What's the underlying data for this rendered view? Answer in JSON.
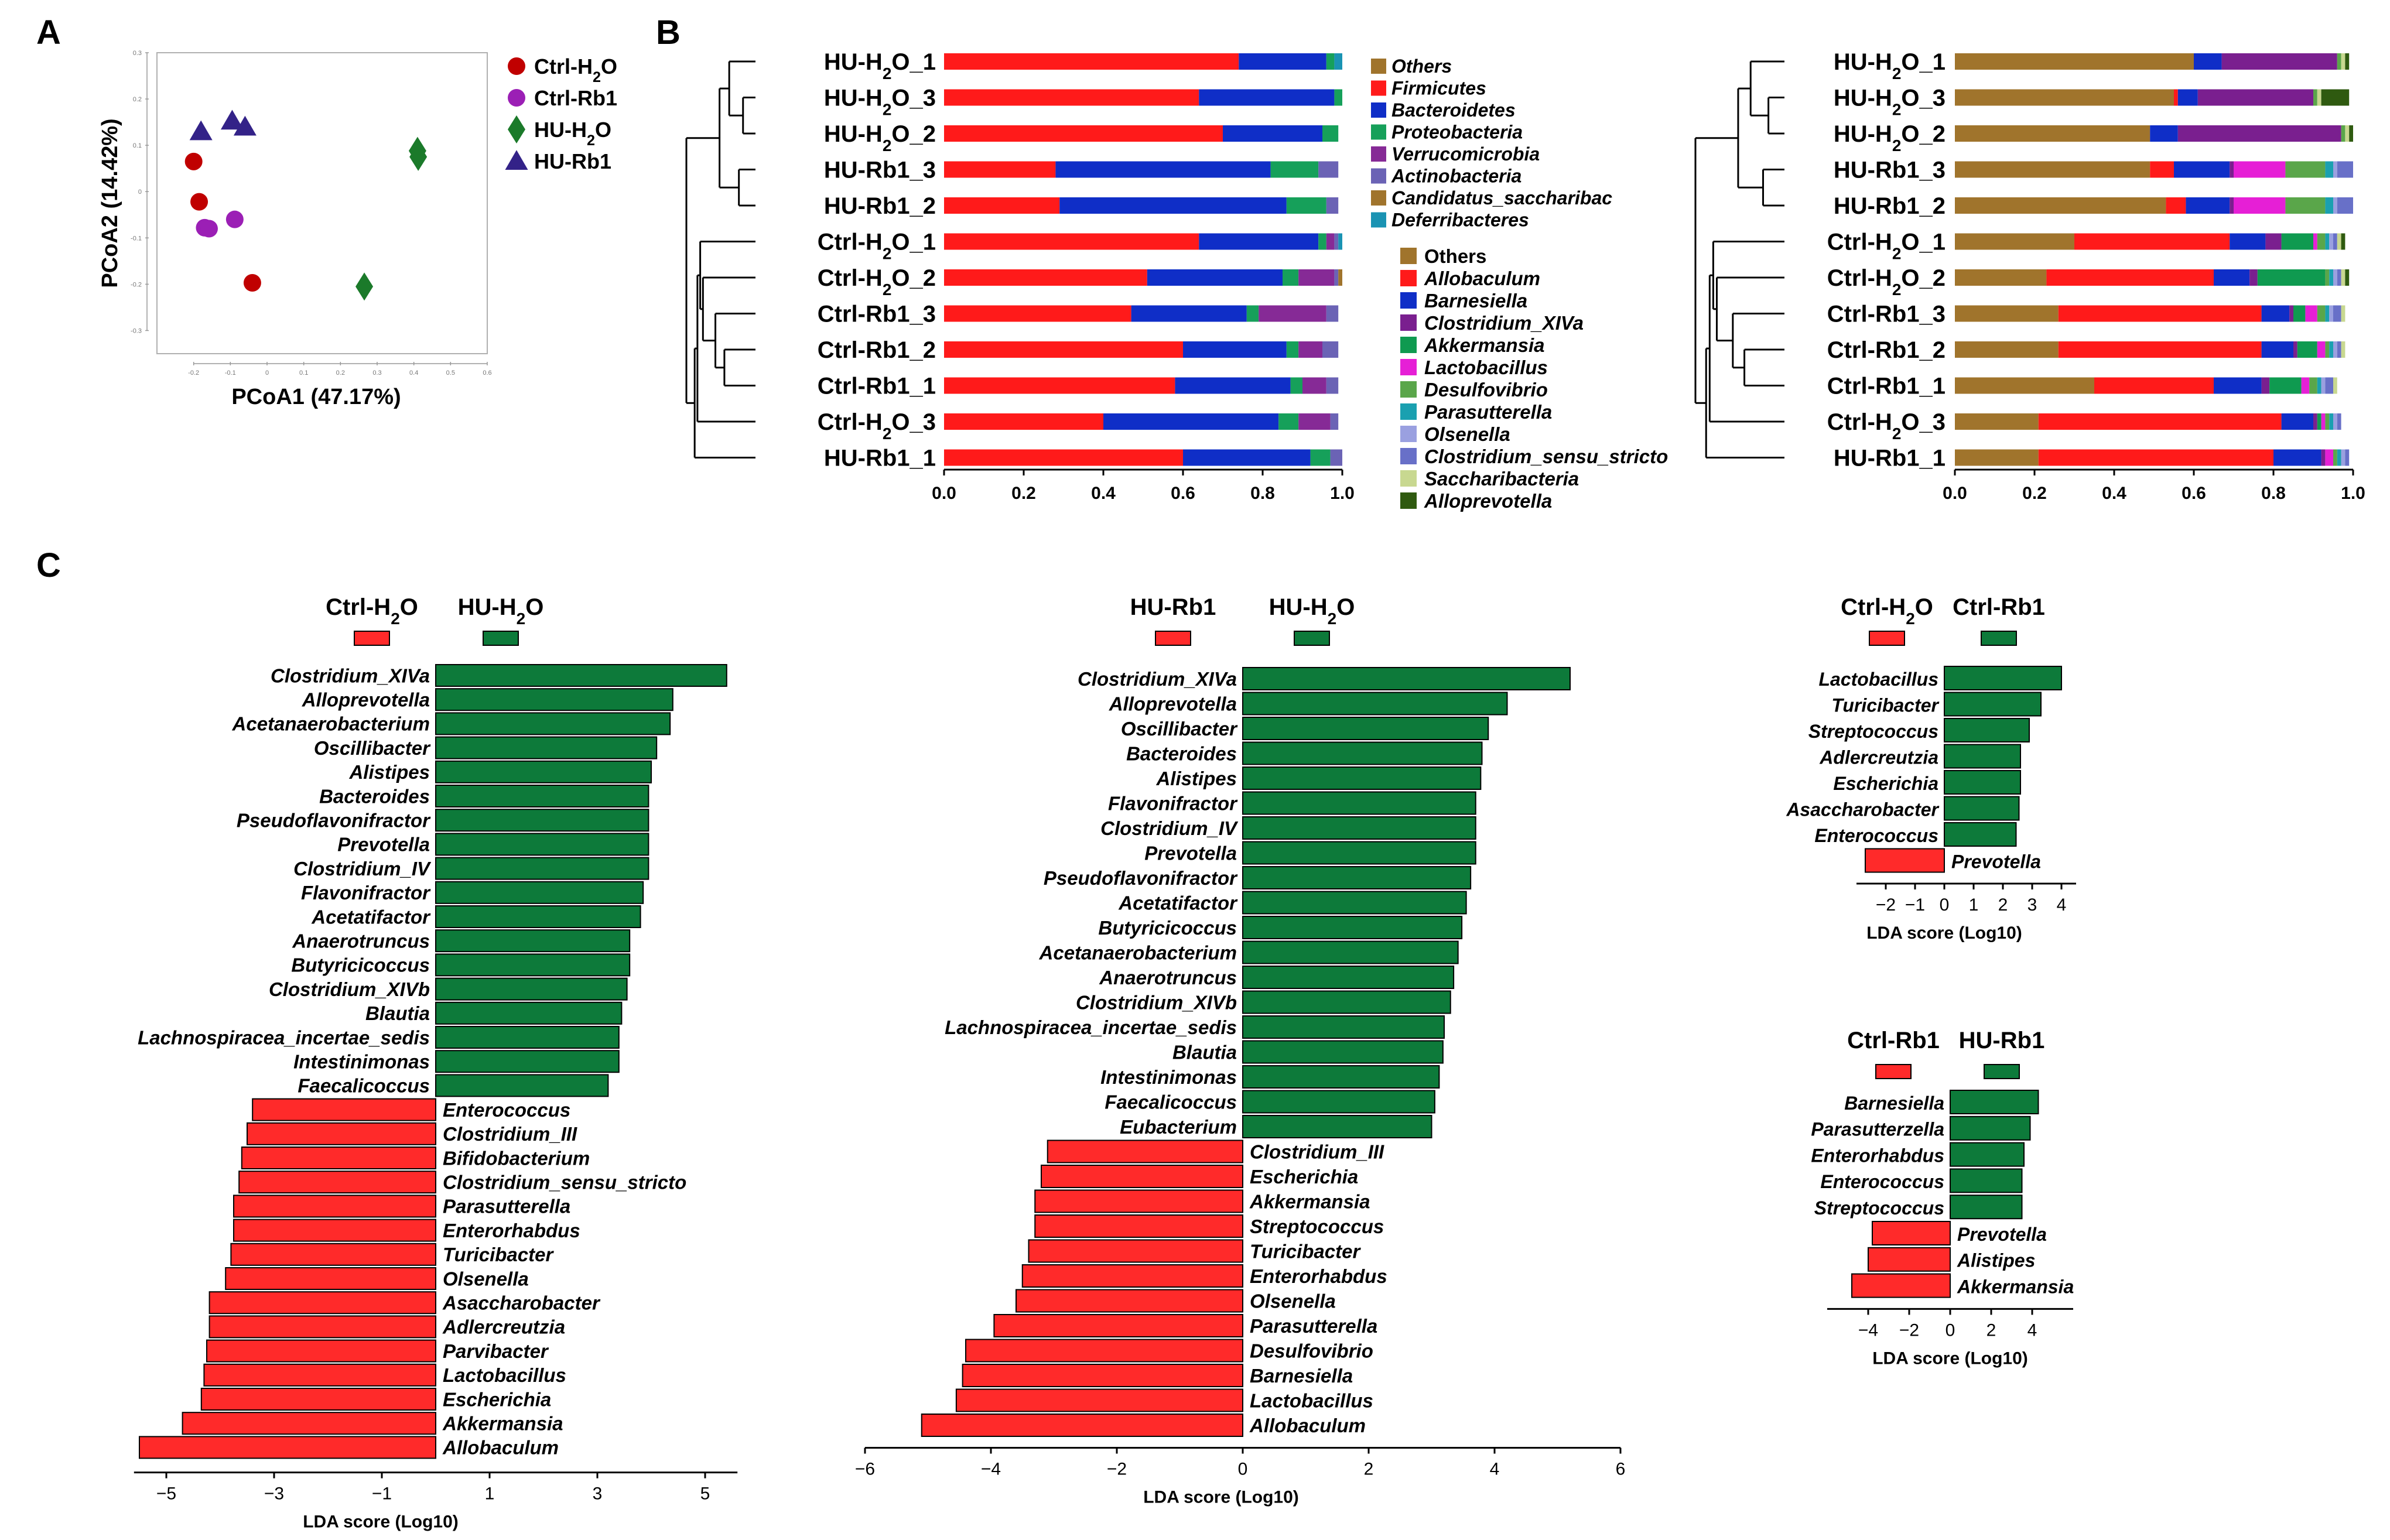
{
  "panel_labels": {
    "a": "A",
    "b": "B",
    "c": "C"
  },
  "colors": {
    "ctrl_h2o": "#c00000",
    "ctrl_rb1": "#9b1fb5",
    "hu_h2o": "#1b7a2a",
    "hu_rb1": "#332288",
    "lda_red": "#ff2a2a",
    "lda_green": "#0d7a3a",
    "phylum": [
      "#a0742c",
      "#ff1a1a",
      "#0f2ec7",
      "#16a05a",
      "#862a96",
      "#6b63b5",
      "#a0742c",
      "#1a93b3"
    ],
    "genus": [
      "#a0742c",
      "#ff1a1a",
      "#0f2ec7",
      "#7a1f8f",
      "#0f9a50",
      "#e61fd6",
      "#5aa64a",
      "#1aa0b0",
      "#9aa0e0",
      "#6870c8",
      "#c8d890",
      "#2f5a10"
    ]
  },
  "chart_data": [
    {
      "id": "pcoa",
      "type": "scatter",
      "xlabel": "PCoA1 (47.17%)",
      "ylabel": "PCoA2 (14.42%)",
      "xlim": [
        -0.3,
        0.6
      ],
      "ylim": [
        -0.35,
        0.3
      ],
      "xticks": [
        "-0.2",
        "-0.1",
        "0",
        "0.1",
        "0.2",
        "0.3",
        "0.4",
        "0.5",
        "0.6"
      ],
      "yticks": [
        "0.3",
        "0.2",
        "0.1",
        "0",
        "-0.1",
        "-0.2",
        "-0.3"
      ],
      "series": [
        {
          "name": "Ctrl-H2O",
          "label": "Ctrl-H",
          "sub": "2",
          "tail": "O",
          "marker": "circle",
          "color": "#c00000",
          "x": [
            -0.2,
            -0.185,
            -0.04
          ],
          "y": [
            0.065,
            -0.022,
            -0.197
          ]
        },
        {
          "name": "Ctrl-Rb1",
          "label": "Ctrl-Rb1",
          "sub": "",
          "tail": "",
          "marker": "circle",
          "color": "#9b1fb5",
          "x": [
            -0.17,
            -0.158,
            -0.088
          ],
          "y": [
            -0.078,
            -0.08,
            -0.06
          ]
        },
        {
          "name": "HU-H2O",
          "label": "HU-H",
          "sub": "2",
          "tail": "O",
          "marker": "diamond",
          "color": "#1b7a2a",
          "x": [
            0.41,
            0.412,
            0.265
          ],
          "y": [
            0.088,
            0.075,
            -0.205
          ]
        },
        {
          "name": "HU-Rb1",
          "label": "HU-Rb1",
          "sub": "",
          "tail": "",
          "marker": "triangle",
          "color": "#332288",
          "x": [
            -0.18,
            -0.095,
            -0.06
          ],
          "y": [
            0.13,
            0.153,
            0.14
          ]
        }
      ]
    },
    {
      "id": "phylum_bars",
      "type": "bar",
      "orientation": "horizontal",
      "stacked": true,
      "xlim": [
        0,
        1
      ],
      "xticks": [
        "0.0",
        "0.2",
        "0.4",
        "0.6",
        "0.8",
        "1.0"
      ],
      "samples": [
        {
          "p": "HU-H",
          "s": "2",
          "q": "O_1"
        },
        {
          "p": "HU-H",
          "s": "2",
          "q": "O_3"
        },
        {
          "p": "HU-H",
          "s": "2",
          "q": "O_2"
        },
        {
          "p": "HU-Rb1_3",
          "s": "",
          "q": ""
        },
        {
          "p": "HU-Rb1_2",
          "s": "",
          "q": ""
        },
        {
          "p": "Ctrl-H",
          "s": "2",
          "q": "O_1"
        },
        {
          "p": "Ctrl-H",
          "s": "2",
          "q": "O_2"
        },
        {
          "p": "Ctrl-Rb1_3",
          "s": "",
          "q": ""
        },
        {
          "p": "Ctrl-Rb1_2",
          "s": "",
          "q": ""
        },
        {
          "p": "Ctrl-Rb1_1",
          "s": "",
          "q": ""
        },
        {
          "p": "Ctrl-H",
          "s": "2",
          "q": "O_3"
        },
        {
          "p": "HU-Rb1_1",
          "s": "",
          "q": ""
        }
      ],
      "series": [
        {
          "name": "Others",
          "values": [
            0,
            0,
            0,
            0,
            0,
            0,
            0,
            0,
            0,
            0,
            0,
            0
          ]
        },
        {
          "name": "Firmicutes",
          "values": [
            0.74,
            0.64,
            0.7,
            0.28,
            0.29,
            0.64,
            0.51,
            0.47,
            0.6,
            0.58,
            0.4,
            0.6
          ]
        },
        {
          "name": "Bacteroidetes",
          "values": [
            0.22,
            0.34,
            0.25,
            0.54,
            0.57,
            0.3,
            0.34,
            0.29,
            0.26,
            0.29,
            0.44,
            0.32
          ]
        },
        {
          "name": "Proteobacteria",
          "values": [
            0.02,
            0.02,
            0.04,
            0.12,
            0.1,
            0.02,
            0.04,
            0.03,
            0.03,
            0.03,
            0.05,
            0.05
          ]
        },
        {
          "name": "Verrucomicrobia",
          "values": [
            0,
            0,
            0,
            0,
            0,
            0.02,
            0.09,
            0.17,
            0.06,
            0.06,
            0.08,
            0
          ]
        },
        {
          "name": "Actinobacteria",
          "values": [
            0,
            0,
            0,
            0.05,
            0.03,
            0.01,
            0.01,
            0.03,
            0.04,
            0.03,
            0.02,
            0.03
          ]
        },
        {
          "name": "Candidatus_saccharibac",
          "values": [
            0,
            0,
            0,
            0,
            0,
            0,
            0.01,
            0,
            0,
            0,
            0,
            0
          ]
        },
        {
          "name": "Deferribacteres",
          "values": [
            0.02,
            0,
            0,
            0,
            0,
            0.01,
            0,
            0,
            0,
            0,
            0,
            0
          ]
        }
      ],
      "legend": [
        "Others",
        "Firmicutes",
        "Bacteroidetes",
        "Proteobacteria",
        "Verrucomicrobia",
        "Actinobacteria",
        "Candidatus_saccharibac",
        "Deferribacteres"
      ]
    },
    {
      "id": "genus_bars",
      "type": "bar",
      "orientation": "horizontal",
      "stacked": true,
      "xlim": [
        0,
        1
      ],
      "xticks": [
        "0.0",
        "0.2",
        "0.4",
        "0.6",
        "0.8",
        "1.0"
      ],
      "series": [
        {
          "name": "Others",
          "values": [
            0.6,
            0.55,
            0.49,
            0.49,
            0.53,
            0.3,
            0.23,
            0.26,
            0.26,
            0.35,
            0.21,
            0.21
          ]
        },
        {
          "name": "Allobaculum",
          "values": [
            0,
            0.01,
            0,
            0.06,
            0.05,
            0.39,
            0.42,
            0.51,
            0.51,
            0.3,
            0.61,
            0.59
          ]
        },
        {
          "name": "Barnesiella",
          "values": [
            0.07,
            0.05,
            0.07,
            0.14,
            0.11,
            0.09,
            0.09,
            0.07,
            0.08,
            0.12,
            0.08,
            0.12
          ]
        },
        {
          "name": "Clostridium_XIVa",
          "values": [
            0.29,
            0.29,
            0.41,
            0.01,
            0.01,
            0.04,
            0.02,
            0.01,
            0.01,
            0.02,
            0.01,
            0.01
          ]
        },
        {
          "name": "Akkermansia",
          "values": [
            0,
            0,
            0,
            0,
            0,
            0.08,
            0.17,
            0.03,
            0.05,
            0.08,
            0.01,
            0
          ]
        },
        {
          "name": "Lactobacillus",
          "values": [
            0,
            0,
            0,
            0.13,
            0.13,
            0.01,
            0,
            0.03,
            0.02,
            0.02,
            0.01,
            0.02
          ]
        },
        {
          "name": "Desulfovibrio",
          "values": [
            0.01,
            0.01,
            0.01,
            0.1,
            0.1,
            0.02,
            0.01,
            0.02,
            0.01,
            0.02,
            0.01,
            0.01
          ]
        },
        {
          "name": "Parasutterella",
          "values": [
            0,
            0,
            0,
            0.02,
            0.02,
            0.01,
            0.01,
            0.01,
            0.01,
            0.01,
            0.01,
            0.01
          ]
        },
        {
          "name": "Olsenella",
          "values": [
            0,
            0,
            0,
            0.01,
            0.01,
            0.01,
            0.01,
            0.01,
            0.01,
            0.01,
            0.01,
            0.01
          ]
        },
        {
          "name": "Clostridium_sensu_stricto",
          "values": [
            0,
            0,
            0,
            0.04,
            0.04,
            0.01,
            0.01,
            0.02,
            0.01,
            0.02,
            0.01,
            0.01
          ]
        },
        {
          "name": "Saccharibacteria",
          "values": [
            0.01,
            0.01,
            0.01,
            0,
            0,
            0.01,
            0.01,
            0.01,
            0.01,
            0.01,
            0,
            0
          ]
        },
        {
          "name": "Alloprevotella",
          "values": [
            0.01,
            0.07,
            0.01,
            0,
            0,
            0.01,
            0.01,
            0,
            0,
            0,
            0,
            0
          ]
        }
      ],
      "legend": [
        "Others",
        "Allobaculum",
        "Barnesiella",
        "Clostridium_XIVa",
        "Akkermansia",
        "Lactobacillus",
        "Desulfovibrio",
        "Parasutterella",
        "Olsenella",
        "Clostridium_sensu_stricto",
        "Saccharibacteria",
        "Alloprevotella"
      ]
    },
    {
      "id": "lda1",
      "type": "bar",
      "orientation": "horizontal",
      "header": {
        "left": {
          "p": "Ctrl-H",
          "s": "2",
          "q": "O"
        },
        "right": {
          "p": "HU-H",
          "s": "2",
          "q": "O"
        }
      },
      "xlabel": "LDA score (Log10)",
      "xlim": [
        -5.6,
        5.6
      ],
      "ticks": [
        -5,
        -3,
        -1,
        1,
        3,
        5
      ],
      "tick_labels": [
        "−5",
        "−3",
        "−1",
        "1",
        "3",
        "5"
      ],
      "categories": [
        "Clostridium_XIVa",
        "Alloprevotella",
        "Acetanaerobacterium",
        "Oscillibacter",
        "Alistipes",
        "Bacteroides",
        "Pseudoflavonifractor",
        "Prevotella",
        "Clostridium_IV",
        "Flavonifractor",
        "Acetatifactor",
        "Anaerotruncus",
        "Butyricicoccus",
        "Clostridium_XIVb",
        "Blautia",
        "Lachnospiracea_incertae_sedis",
        "Intestinimonas",
        "Faecalicoccus",
        "Enterococcus",
        "Clostridium_III",
        "Bifidobacterium",
        "Clostridium_sensu_stricto",
        "Parasutterella",
        "Enterorhabdus",
        "Turicibacter",
        "Olsenella",
        "Asaccharobacter",
        "Adlercreutzia",
        "Parvibacter",
        "Lactobacillus",
        "Escherichia",
        "Akkermansia",
        "Allobaculum"
      ],
      "values": [
        5.4,
        4.4,
        4.35,
        4.1,
        4.0,
        3.95,
        3.95,
        3.95,
        3.95,
        3.85,
        3.8,
        3.6,
        3.6,
        3.55,
        3.45,
        3.4,
        3.4,
        3.2,
        -3.4,
        -3.5,
        -3.6,
        -3.65,
        -3.75,
        -3.75,
        -3.8,
        -3.9,
        -4.2,
        -4.2,
        -4.25,
        -4.3,
        -4.35,
        -4.7,
        -5.5
      ]
    },
    {
      "id": "lda2",
      "type": "bar",
      "orientation": "horizontal",
      "header": {
        "left": {
          "p": "HU-Rb1",
          "s": "",
          "q": ""
        },
        "right": {
          "p": "HU-H",
          "s": "2",
          "q": "O"
        }
      },
      "xlabel": "LDA score (Log10)",
      "xlim": [
        -6,
        6
      ],
      "ticks": [
        -6,
        -4,
        -2,
        0,
        2,
        4,
        6
      ],
      "tick_labels": [
        "−6",
        "−4",
        "−2",
        "0",
        "2",
        "4",
        "6"
      ],
      "categories": [
        "Clostridium_XIVa",
        "Alloprevotella",
        "Oscillibacter",
        "Bacteroides",
        "Alistipes",
        "Flavonifractor",
        "Clostridium_IV",
        "Prevotella",
        "Pseudoflavonifractor",
        "Acetatifactor",
        "Butyricicoccus",
        "Acetanaerobacterium",
        "Anaerotruncus",
        "Clostridium_XIVb",
        "Lachnospiracea_incertae_sedis",
        "Blautia",
        "Intestinimonas",
        "Faecalicoccus",
        "Eubacterium",
        "Clostridium_III",
        "Escherichia",
        "Akkermansia",
        "Streptococcus",
        "Turicibacter",
        "Enterorhabdus",
        "Olsenella",
        "Parasutterella",
        "Desulfovibrio",
        "Barnesiella",
        "Lactobacillus",
        "Allobaculum"
      ],
      "values": [
        5.2,
        4.2,
        3.9,
        3.8,
        3.78,
        3.7,
        3.7,
        3.7,
        3.62,
        3.55,
        3.48,
        3.42,
        3.35,
        3.3,
        3.2,
        3.18,
        3.12,
        3.05,
        3.0,
        -3.1,
        -3.2,
        -3.3,
        -3.3,
        -3.4,
        -3.5,
        -3.6,
        -3.95,
        -4.4,
        -4.45,
        -4.55,
        -5.1
      ]
    },
    {
      "id": "lda3",
      "type": "bar",
      "orientation": "horizontal",
      "header": {
        "left": {
          "p": "Ctrl-H",
          "s": "2",
          "q": "O"
        },
        "right": {
          "p": "Ctrl-Rb1",
          "s": "",
          "q": ""
        }
      },
      "xlabel": "LDA score (Log10)",
      "xlim": [
        -3,
        4.5
      ],
      "ticks": [
        -2,
        -1,
        0,
        1,
        2,
        3,
        4
      ],
      "tick_labels": [
        "−2",
        "−1",
        "0",
        "1",
        "2",
        "3",
        "4"
      ],
      "categories": [
        "Lactobacillus",
        "Turicibacter",
        "Streptococcus",
        "Adlercreutzia",
        "Escherichia",
        "Asaccharobacter",
        "Enterococcus",
        "Prevotella"
      ],
      "values": [
        4.0,
        3.3,
        2.9,
        2.6,
        2.6,
        2.55,
        2.45,
        -2.7
      ]
    },
    {
      "id": "lda4",
      "type": "bar",
      "orientation": "horizontal",
      "header": {
        "left": {
          "p": "Ctrl-Rb1",
          "s": "",
          "q": ""
        },
        "right": {
          "p": "HU-Rb1",
          "s": "",
          "q": ""
        }
      },
      "xlabel": "LDA score (Log10)",
      "xlim": [
        -6,
        6
      ],
      "ticks": [
        -4,
        -2,
        0,
        2,
        4
      ],
      "tick_labels": [
        "−4",
        "−2",
        "0",
        "2",
        "4"
      ],
      "categories": [
        "Barnesiella",
        "Parasutterzella",
        "Enterorhabdus",
        "Enterococcus",
        "Streptococcus",
        "Prevotella",
        "Alistipes",
        "Akkermansia"
      ],
      "values": [
        4.3,
        3.9,
        3.6,
        3.5,
        3.5,
        -3.8,
        -4.0,
        -4.8
      ]
    }
  ]
}
